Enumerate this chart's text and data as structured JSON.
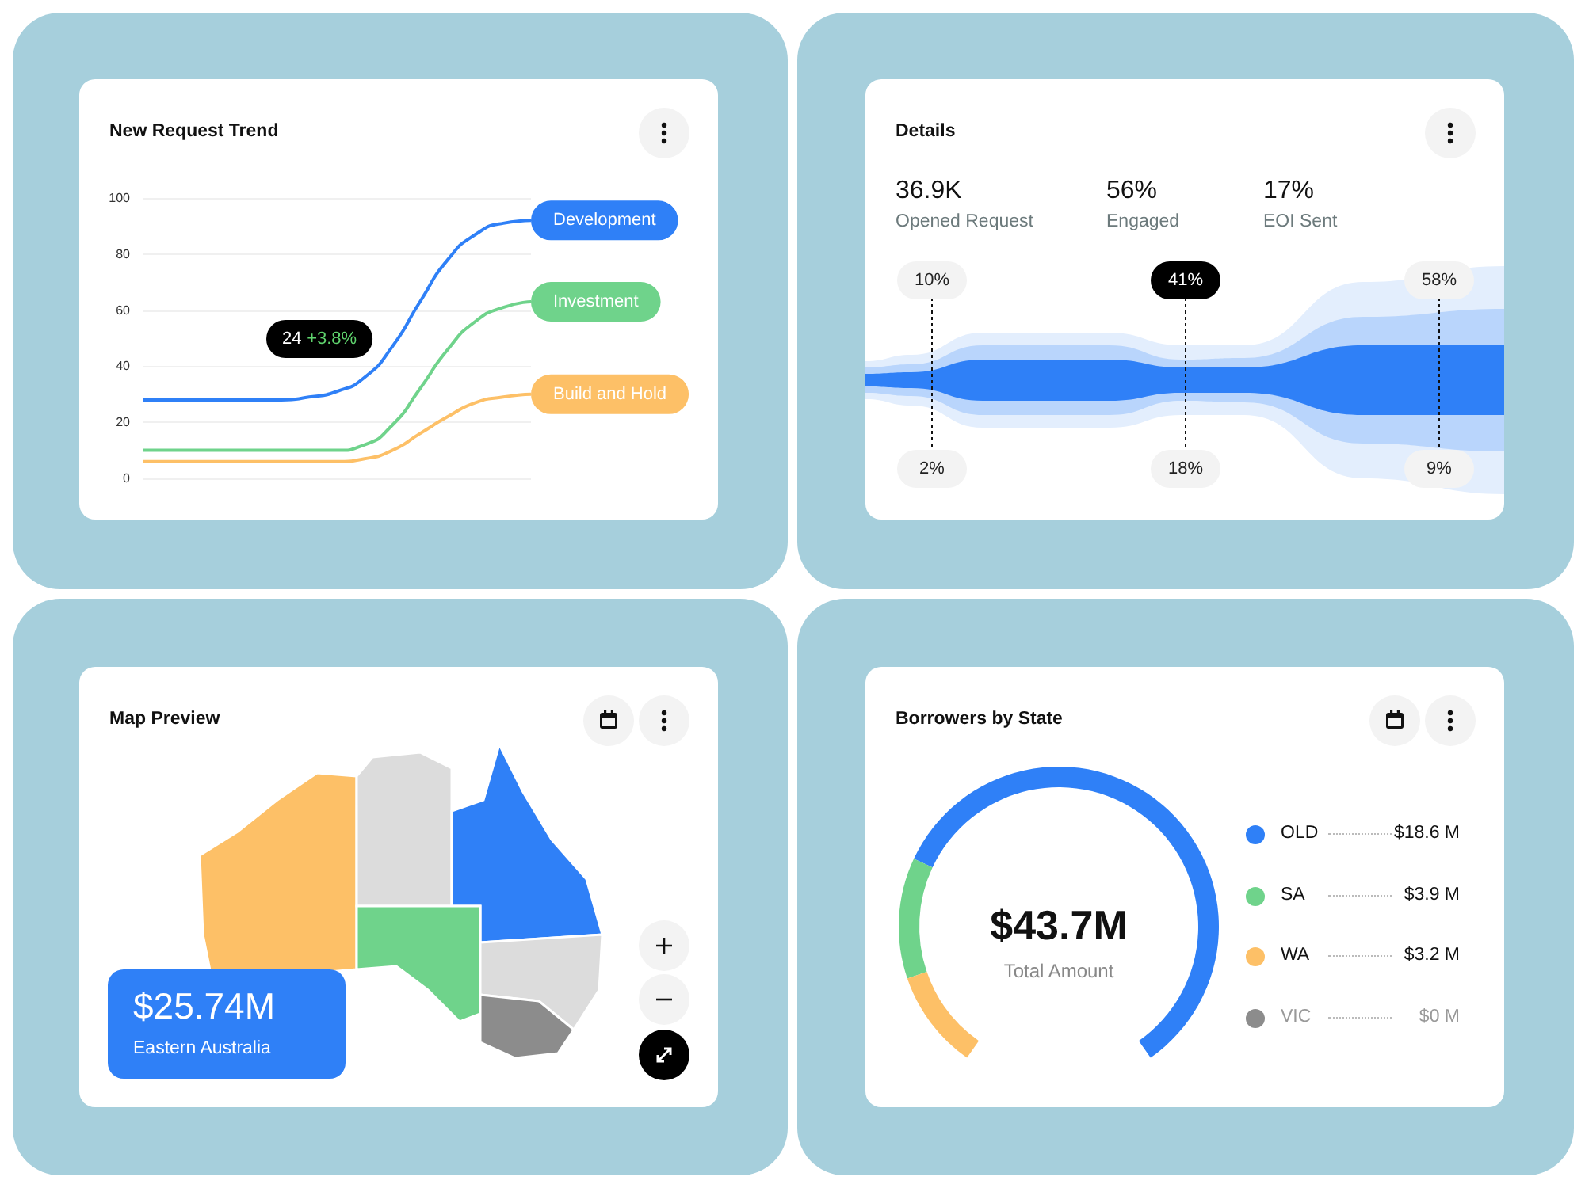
{
  "chart_data": [
    {
      "type": "line",
      "title": "New Request Trend",
      "categories": [
        null,
        null,
        null,
        null,
        null,
        null,
        null,
        null,
        null,
        null,
        null,
        null,
        null,
        null,
        null
      ],
      "series": [
        {
          "name": "Development",
          "color": "#2f80f7",
          "values": [
            28,
            28,
            28,
            28,
            28,
            28,
            29,
            31,
            36,
            47,
            63,
            78,
            87,
            91,
            92
          ]
        },
        {
          "name": "Investment",
          "color": "#6fd38b",
          "values": [
            10,
            10,
            10,
            10,
            10,
            10,
            10,
            10,
            12,
            19,
            32,
            46,
            56,
            61,
            63
          ]
        },
        {
          "name": "Build and Hold",
          "color": "#fdc067",
          "values": [
            6,
            6,
            6,
            6,
            6,
            6,
            6,
            6,
            7,
            10,
            16,
            22,
            27,
            29,
            30
          ]
        }
      ],
      "ylim": [
        0,
        100
      ],
      "yticks": [
        0,
        20,
        40,
        60,
        80,
        100
      ],
      "grid": "y",
      "annotations": [
        "24 +3.8%"
      ]
    },
    {
      "type": "other",
      "title": "Details",
      "annotations": [
        "36.9K",
        "Opened Request",
        "56%",
        "Engaged",
        "17%",
        "EOI Sent",
        "10%",
        "2%",
        "41%",
        "18%",
        "58%",
        "9%"
      ]
    },
    {
      "type": "other",
      "title": "Map Preview",
      "annotations": [
        "$25.74M",
        "Eastern Australia"
      ]
    },
    {
      "type": "donut",
      "title": "Borrowers by State",
      "categories": [
        "OLD",
        "SA",
        "WA",
        "VIC"
      ],
      "values": [
        18.6,
        3.9,
        3.2,
        0
      ],
      "colors": [
        "#2f80f7",
        "#6fd38b",
        "#fdc067",
        "#8c8c8c"
      ],
      "value_labels": [
        "$18.6 M",
        "$3.9 M",
        "$3.2 M",
        "$0 M"
      ],
      "legend": "right",
      "annotations": [
        "$43.7M",
        "Total Amount"
      ]
    }
  ]
}
